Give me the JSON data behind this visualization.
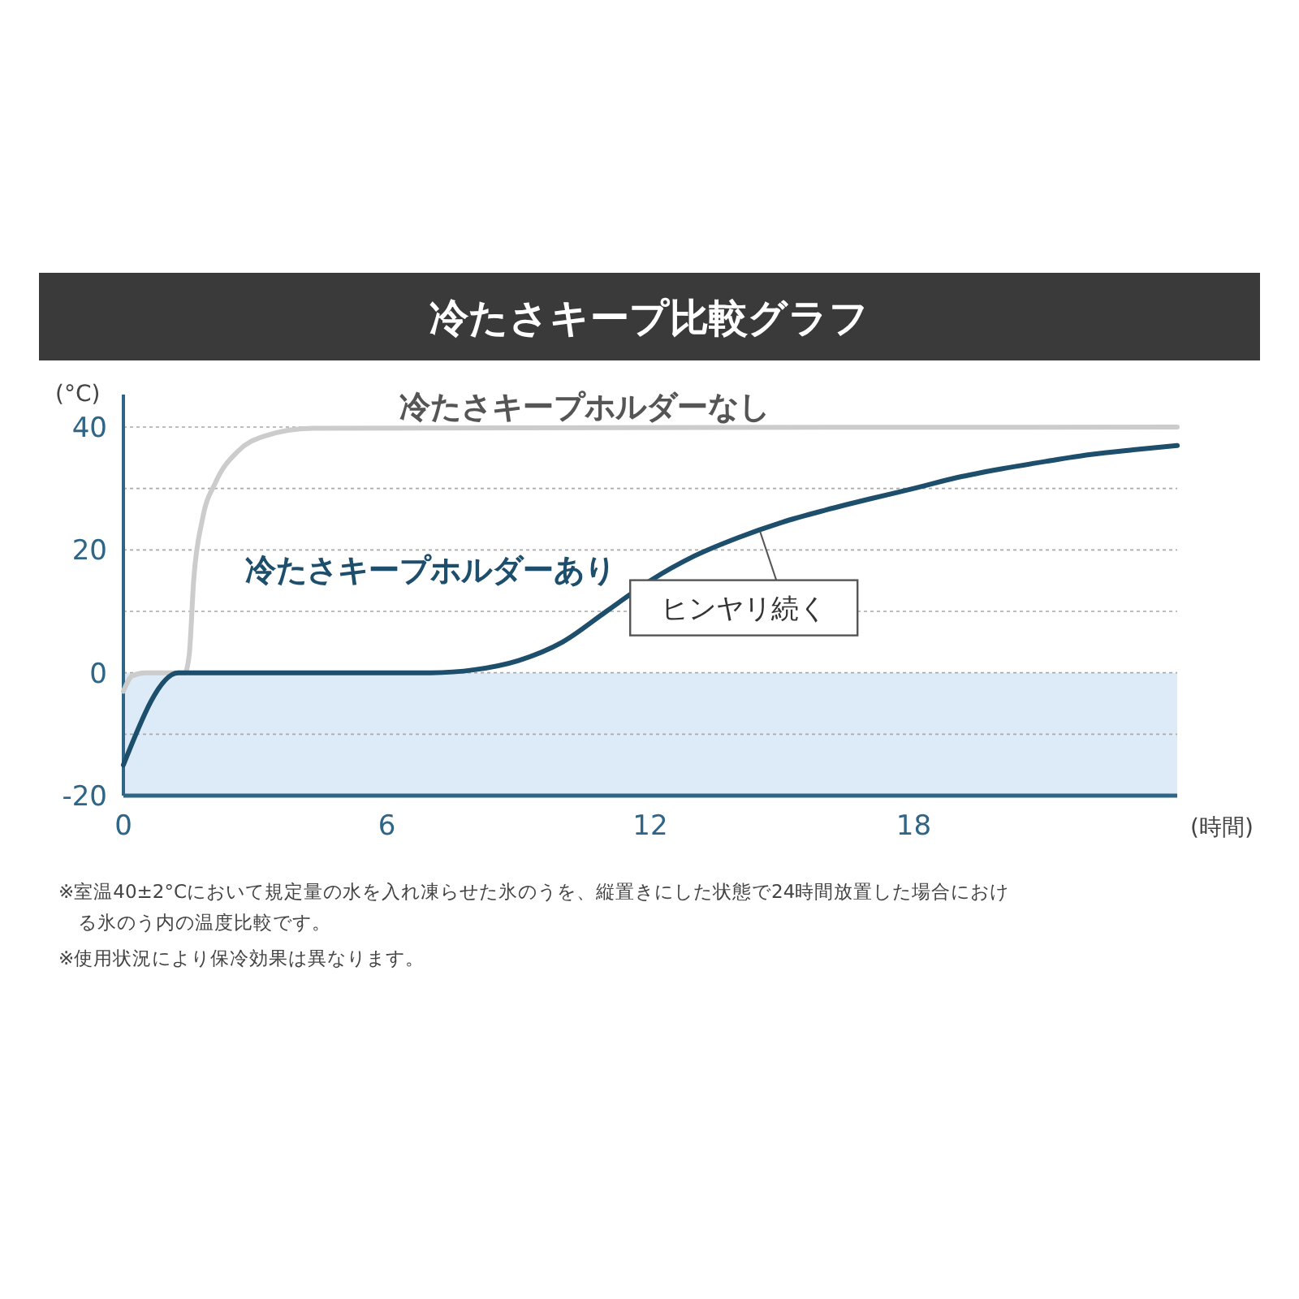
{
  "chart_data": {
    "type": "line",
    "title": "冷たさキープ比較グラフ",
    "xlabel": "(時間)",
    "ylabel": "(°C)",
    "xlim": [
      0,
      24
    ],
    "xticks": [
      0,
      6,
      12,
      18
    ],
    "ylim": [
      -20,
      40
    ],
    "yticks": [
      -20,
      {
        "value": -10,
        "label": null
      },
      0,
      {
        "value": 10,
        "label": null
      },
      20,
      {
        "value": 30,
        "label": null
      },
      40
    ],
    "grid": "y",
    "legend": false,
    "marker": "none",
    "line_style": "solid",
    "bands": [
      {
        "axis": "y",
        "from": -20,
        "to": 0,
        "color": "#dcebf7"
      }
    ],
    "series": [
      {
        "name": "冷たさキープホルダーなし",
        "color": "#cccccc",
        "x": [
          0,
          0.2,
          0.5,
          1.4,
          1.5,
          1.6,
          1.8,
          2.1,
          2.6,
          3.2,
          4.3,
          24
        ],
        "values": [
          -3,
          -0.5,
          0,
          0,
          3,
          15,
          25,
          31,
          36,
          38.5,
          39.8,
          40
        ]
      },
      {
        "name": "冷たさキープホルダーあり",
        "color": "#1d4e6b",
        "x": [
          0,
          1.25,
          7,
          8,
          9,
          10,
          11,
          12,
          13,
          14,
          15,
          16,
          17,
          18,
          19,
          20,
          21,
          22,
          23,
          24
        ],
        "values": [
          -15,
          0,
          0,
          0.5,
          2,
          5,
          10,
          15,
          19,
          22,
          24.5,
          26.5,
          28.3,
          30,
          31.8,
          33.2,
          34.4,
          35.5,
          36.3,
          37
        ]
      }
    ],
    "annotations": [
      {
        "text": "ヒンヤリ続く",
        "x": 14.5,
        "y": 23
      },
      "※室温40±2°Cにおいて規定量の水を入れ凍らせた氷のうを、縦置きにした状態で24時間放置した場合における氷のう内の温度比較です。",
      "※使用状況により保冷効果は異なります。"
    ]
  }
}
